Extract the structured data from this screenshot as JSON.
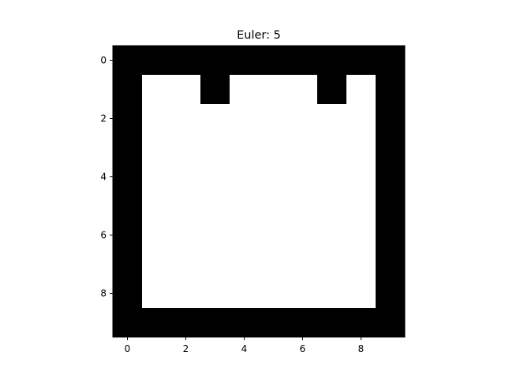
{
  "chart_data": {
    "type": "heatmap",
    "title": "Euler: 5",
    "xlabel": "",
    "ylabel": "",
    "xlim": [
      -0.5,
      9.5
    ],
    "ylim": [
      9.5,
      -0.5
    ],
    "x_ticks": [
      0,
      2,
      4,
      6,
      8
    ],
    "y_ticks": [
      0,
      2,
      4,
      6,
      8
    ],
    "x_tick_labels": [
      "0",
      "2",
      "4",
      "6",
      "8"
    ],
    "y_tick_labels": [
      "0",
      "2",
      "4",
      "6",
      "8"
    ],
    "colormap": [
      "#000000",
      "#ffffff"
    ],
    "grid": false,
    "rows": 10,
    "cols": 10,
    "values": [
      [
        0,
        0,
        0,
        0,
        0,
        0,
        0,
        0,
        0,
        0
      ],
      [
        0,
        1,
        1,
        0,
        1,
        1,
        1,
        0,
        1,
        0
      ],
      [
        0,
        1,
        1,
        1,
        1,
        1,
        1,
        1,
        1,
        0
      ],
      [
        0,
        1,
        1,
        1,
        1,
        1,
        1,
        1,
        1,
        0
      ],
      [
        0,
        1,
        1,
        1,
        1,
        1,
        1,
        1,
        1,
        0
      ],
      [
        0,
        1,
        1,
        1,
        1,
        1,
        1,
        1,
        1,
        0
      ],
      [
        0,
        1,
        1,
        1,
        1,
        1,
        1,
        1,
        1,
        0
      ],
      [
        0,
        1,
        1,
        1,
        1,
        1,
        1,
        1,
        1,
        0
      ],
      [
        0,
        1,
        1,
        1,
        1,
        1,
        1,
        1,
        1,
        0
      ],
      [
        0,
        0,
        0,
        0,
        0,
        0,
        0,
        0,
        0,
        0
      ]
    ]
  }
}
